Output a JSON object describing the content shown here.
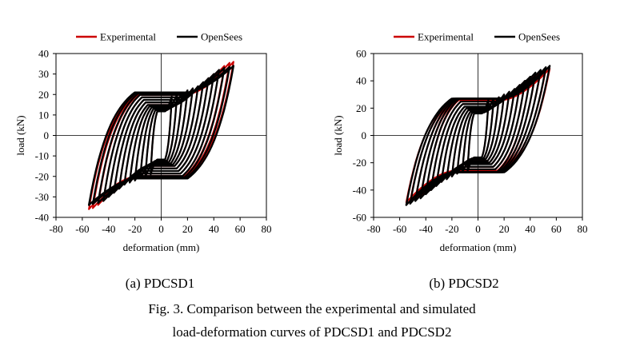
{
  "chart_data": [
    {
      "type": "line",
      "title": "",
      "subtitle": "(a) PDCSD1",
      "xlabel": "deformation (mm)",
      "ylabel": "load (kN)",
      "xlim": [
        -80,
        80
      ],
      "ylim": [
        -40,
        40
      ],
      "xticks": [
        -80,
        -60,
        -40,
        -20,
        0,
        20,
        40,
        60,
        80
      ],
      "yticks": [
        -40,
        -30,
        -20,
        -10,
        0,
        10,
        20,
        30,
        40
      ],
      "legend": "top",
      "grid": false,
      "series": [
        {
          "name": "Experimental",
          "color": "#cc0000",
          "amplitudes": [
            8,
            12,
            16,
            20,
            24,
            28,
            32,
            36,
            40,
            44,
            48,
            52,
            55
          ],
          "peak_loads": [
            19,
            20,
            21,
            22,
            23,
            24,
            26,
            28,
            30,
            32,
            34,
            35.5,
            36
          ],
          "pinch_load": 20
        },
        {
          "name": "OpenSees",
          "color": "#000000",
          "amplitudes": [
            8,
            12,
            16,
            20,
            24,
            28,
            32,
            36,
            40,
            44,
            48,
            52,
            55
          ],
          "peak_loads": [
            19,
            20,
            21,
            22,
            23,
            24,
            26,
            28,
            30,
            32,
            33,
            33.5,
            34
          ],
          "pinch_load": 21
        }
      ]
    },
    {
      "type": "line",
      "title": "",
      "subtitle": "(b) PDCSD2",
      "xlabel": "deformation (mm)",
      "ylabel": "load (kN)",
      "xlim": [
        -80,
        80
      ],
      "ylim": [
        -60,
        60
      ],
      "xticks": [
        -80,
        -60,
        -40,
        -20,
        0,
        20,
        40,
        60,
        80
      ],
      "yticks": [
        -60,
        -40,
        -20,
        0,
        20,
        40,
        60
      ],
      "legend": "top",
      "grid": false,
      "series": [
        {
          "name": "Experimental",
          "color": "#cc0000",
          "amplitudes": [
            8,
            12,
            16,
            20,
            24,
            28,
            32,
            36,
            40,
            44,
            48,
            52,
            55
          ],
          "peak_loads": [
            26,
            27,
            28,
            30,
            32,
            34,
            37,
            40,
            43,
            45,
            47,
            48.5,
            49
          ],
          "pinch_load": 26
        },
        {
          "name": "OpenSees",
          "color": "#000000",
          "amplitudes": [
            8,
            12,
            16,
            20,
            24,
            28,
            32,
            36,
            40,
            44,
            48,
            52,
            55
          ],
          "peak_loads": [
            26,
            27,
            28,
            30,
            32,
            34,
            37,
            40,
            43,
            46,
            48,
            50,
            51
          ],
          "pinch_load": 27
        }
      ]
    }
  ],
  "captions": {
    "line1": "Fig. 3. Comparison between the experimental and simulated",
    "line2": "load-deformation curves of PDCSD1 and PDCSD2"
  }
}
